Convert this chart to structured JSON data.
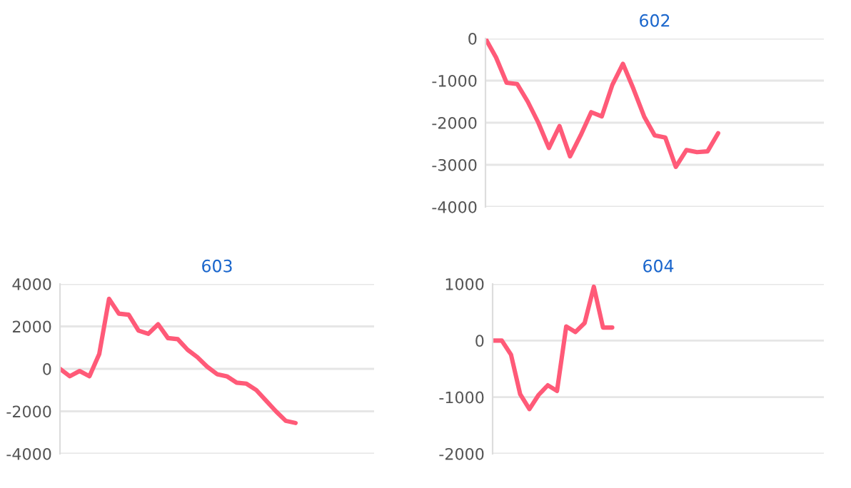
{
  "chart_data": [
    {
      "type": "line",
      "title": "602",
      "categories": [
        null,
        null,
        null,
        null,
        null,
        null,
        null,
        null,
        null,
        null,
        null,
        null,
        null,
        null,
        null,
        null,
        null,
        null,
        null,
        null,
        null,
        null,
        null,
        null,
        null,
        null,
        null,
        null,
        null,
        null,
        null,
        null,
        null
      ],
      "series": [
        {
          "color": "#ff5a78",
          "values": [
            0,
            -450,
            -1050,
            -1080,
            -1500,
            -2000,
            -2600,
            -2080,
            -2800,
            -2300,
            -1750,
            -1850,
            -1100,
            -600,
            -1200,
            -1850,
            -2300,
            -2350,
            -3050,
            -2650,
            -2700,
            -2680,
            -2250,
            null,
            null,
            null,
            null,
            null,
            null,
            null,
            null,
            null,
            null
          ]
        }
      ],
      "ylim": [
        -4000,
        0
      ],
      "yticks": [
        -4000,
        -3000,
        -2000,
        -1000,
        0
      ],
      "grid": "y",
      "tick_labels": "y"
    },
    {
      "type": "line",
      "title": "603",
      "categories": [
        null,
        null,
        null,
        null,
        null,
        null,
        null,
        null,
        null,
        null,
        null,
        null,
        null,
        null,
        null,
        null,
        null,
        null,
        null,
        null,
        null,
        null,
        null,
        null,
        null,
        null,
        null,
        null,
        null,
        null,
        null,
        null,
        null
      ],
      "series": [
        {
          "color": "#ff5a78",
          "values": [
            0,
            -350,
            -100,
            -350,
            700,
            3300,
            2600,
            2550,
            1800,
            1650,
            2100,
            1450,
            1400,
            900,
            550,
            100,
            -250,
            -350,
            -650,
            -700,
            -1000,
            -1500,
            -2000,
            -2450,
            -2550,
            null,
            null,
            null,
            null,
            null,
            null,
            null,
            null
          ]
        }
      ],
      "ylim": [
        -4000,
        4000
      ],
      "yticks": [
        -4000,
        -2000,
        0,
        2000,
        4000
      ],
      "grid": "y",
      "tick_labels": "y"
    },
    {
      "type": "line",
      "title": "604",
      "categories": [
        null,
        null,
        null,
        null,
        null,
        null,
        null,
        null,
        null,
        null,
        null,
        null,
        null,
        null,
        null,
        null,
        null,
        null,
        null,
        null,
        null,
        null,
        null,
        null,
        null,
        null,
        null,
        null,
        null,
        null,
        null,
        null,
        null,
        null,
        null,
        null,
        null
      ],
      "series": [
        {
          "color": "#ff5a78",
          "values": [
            0,
            0,
            -250,
            -950,
            -1210,
            -960,
            -790,
            -890,
            250,
            150,
            310,
            950,
            230,
            230,
            null,
            null,
            null,
            null,
            null,
            null,
            null,
            null,
            null,
            null,
            null,
            null,
            null,
            null,
            null,
            null,
            null,
            null,
            null,
            null,
            null,
            null,
            null
          ]
        }
      ],
      "ylim": [
        -2000,
        1000
      ],
      "yticks": [
        -2000,
        -1000,
        0,
        1000
      ],
      "grid": "y",
      "tick_labels": "y"
    }
  ]
}
